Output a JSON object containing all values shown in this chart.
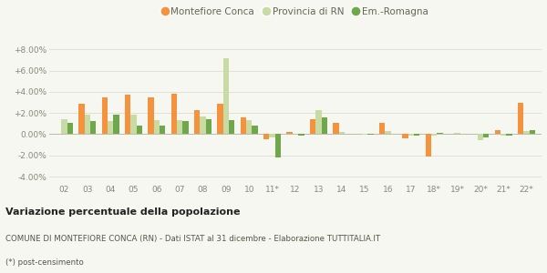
{
  "categories": [
    "02",
    "03",
    "04",
    "05",
    "06",
    "07",
    "08",
    "09",
    "10",
    "11*",
    "12",
    "13",
    "14",
    "15",
    "16",
    "17",
    "18*",
    "19*",
    "20*",
    "21*",
    "22*"
  ],
  "montefiore": [
    0.0,
    2.9,
    3.5,
    3.7,
    3.5,
    3.8,
    2.3,
    2.9,
    1.6,
    -0.5,
    0.2,
    1.4,
    1.1,
    0.0,
    1.1,
    -0.4,
    -2.1,
    0.0,
    0.0,
    0.4,
    3.0
  ],
  "provincia_rn": [
    1.4,
    1.85,
    1.25,
    1.85,
    1.35,
    1.3,
    1.65,
    7.15,
    1.3,
    -0.3,
    0.0,
    2.25,
    0.25,
    -0.05,
    0.3,
    -0.15,
    -0.1,
    0.1,
    -0.55,
    -0.1,
    0.3
  ],
  "em_romagna": [
    1.1,
    1.25,
    1.8,
    0.85,
    0.85,
    1.25,
    1.45,
    1.35,
    0.8,
    -2.2,
    -0.15,
    1.55,
    0.05,
    -0.05,
    0.05,
    -0.1,
    0.1,
    0.05,
    -0.3,
    -0.15,
    0.35
  ],
  "color_montefiore": "#f5923e",
  "color_provincia": "#c8dba4",
  "color_emromagna": "#6fa84a",
  "title_bold": "Variazione percentuale della popolazione",
  "subtitle": "COMUNE DI MONTEFIORE CONCA (RN) - Dati ISTAT al 31 dicembre - Elaborazione TUTTITALIA.IT",
  "footnote": "(*) post-censimento",
  "legend_labels": [
    "Montefiore Conca",
    "Provincia di RN",
    "Em.-Romagna"
  ],
  "ylim": [
    -4.6,
    8.8
  ],
  "yticks": [
    -4.0,
    -2.0,
    0.0,
    2.0,
    4.0,
    6.0,
    8.0
  ],
  "bg_color": "#f7f7f2",
  "grid_color": "#e0e0d4"
}
